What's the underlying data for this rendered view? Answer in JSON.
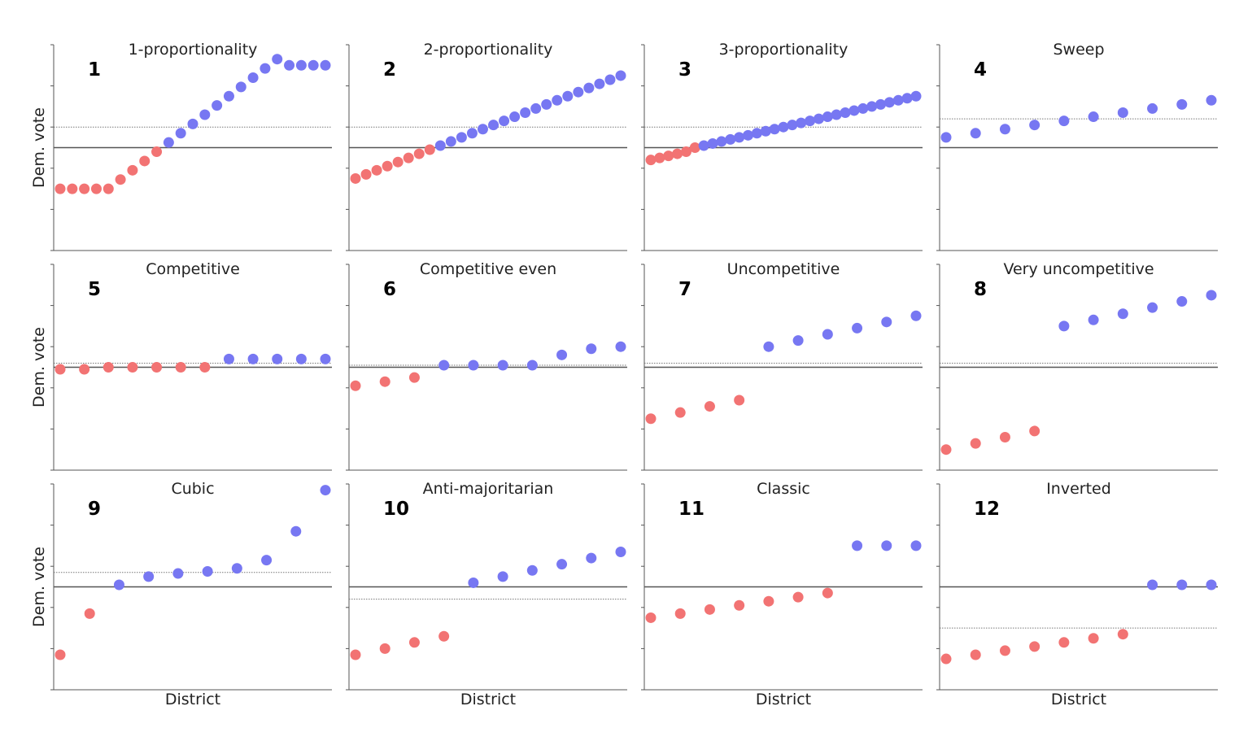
{
  "colors": {
    "republican": "#f27373",
    "democrat": "#7777f2",
    "baseline": "#555555",
    "mean_line": "#777777"
  },
  "labels": {
    "ylabel": "Dem. vote",
    "xlabel": "District"
  },
  "chart_data": [
    {
      "type": "scatter",
      "number": "1",
      "title": "1-proportionality",
      "ylim": [
        0,
        1
      ],
      "baseline": 0.5,
      "mean": 0.6,
      "grid": false,
      "y": [
        0.3,
        0.3,
        0.3,
        0.3,
        0.3,
        0.345,
        0.39,
        0.435,
        0.48,
        0.525,
        0.57,
        0.615,
        0.66,
        0.705,
        0.75,
        0.795,
        0.84,
        0.885,
        0.93,
        0.9,
        0.9,
        0.9,
        0.9
      ]
    },
    {
      "type": "scatter",
      "number": "2",
      "title": "2-proportionality",
      "ylim": [
        0,
        1
      ],
      "baseline": 0.5,
      "mean": 0.6,
      "grid": false,
      "y": [
        0.35,
        0.37,
        0.39,
        0.41,
        0.43,
        0.45,
        0.47,
        0.49,
        0.51,
        0.53,
        0.55,
        0.57,
        0.59,
        0.61,
        0.63,
        0.65,
        0.67,
        0.69,
        0.71,
        0.73,
        0.75,
        0.77,
        0.79,
        0.81,
        0.83,
        0.85
      ]
    },
    {
      "type": "scatter",
      "number": "3",
      "title": "3-proportionality",
      "ylim": [
        0,
        1
      ],
      "baseline": 0.5,
      "mean": 0.6,
      "grid": false,
      "y": [
        0.44,
        0.45,
        0.46,
        0.47,
        0.48,
        0.5,
        0.51,
        0.52,
        0.53,
        0.54,
        0.55,
        0.56,
        0.57,
        0.58,
        0.59,
        0.6,
        0.61,
        0.62,
        0.63,
        0.64,
        0.65,
        0.66,
        0.67,
        0.68,
        0.69,
        0.7,
        0.71,
        0.72,
        0.73,
        0.74,
        0.75
      ]
    },
    {
      "type": "scatter",
      "number": "4",
      "title": "Sweep",
      "ylim": [
        0,
        1
      ],
      "baseline": 0.5,
      "mean": 0.64,
      "grid": false,
      "y": [
        0.55,
        0.57,
        0.59,
        0.61,
        0.63,
        0.65,
        0.67,
        0.69,
        0.71,
        0.73
      ]
    },
    {
      "type": "scatter",
      "number": "5",
      "title": "Competitive",
      "ylim": [
        0,
        1
      ],
      "baseline": 0.5,
      "mean": 0.52,
      "grid": false,
      "y": [
        0.49,
        0.49,
        0.5,
        0.5,
        0.5,
        0.5,
        0.5,
        0.54,
        0.54,
        0.54,
        0.54,
        0.54
      ]
    },
    {
      "type": "scatter",
      "number": "6",
      "title": "Competitive even",
      "ylim": [
        0,
        1
      ],
      "baseline": 0.5,
      "mean": 0.51,
      "grid": false,
      "y": [
        0.41,
        0.43,
        0.45,
        0.51,
        0.51,
        0.51,
        0.51,
        0.56,
        0.59,
        0.6
      ]
    },
    {
      "type": "scatter",
      "number": "7",
      "title": "Uncompetitive",
      "ylim": [
        0,
        1
      ],
      "baseline": 0.5,
      "mean": 0.52,
      "grid": false,
      "y": [
        0.25,
        0.28,
        0.31,
        0.34,
        0.6,
        0.63,
        0.66,
        0.69,
        0.72,
        0.75
      ]
    },
    {
      "type": "scatter",
      "number": "8",
      "title": "Very uncompetitive",
      "ylim": [
        0,
        1
      ],
      "baseline": 0.5,
      "mean": 0.52,
      "grid": false,
      "y": [
        0.1,
        0.13,
        0.16,
        0.19,
        0.7,
        0.73,
        0.76,
        0.79,
        0.82,
        0.85
      ]
    },
    {
      "type": "scatter",
      "number": "9",
      "title": "Cubic",
      "ylim": [
        0,
        1
      ],
      "baseline": 0.5,
      "mean": 0.57,
      "grid": false,
      "y": [
        0.17,
        0.37,
        0.51,
        0.55,
        0.565,
        0.575,
        0.59,
        0.63,
        0.77,
        0.97
      ]
    },
    {
      "type": "scatter",
      "number": "10",
      "title": "Anti-majoritarian",
      "ylim": [
        0,
        1
      ],
      "baseline": 0.5,
      "mean": 0.44,
      "grid": false,
      "y": [
        0.17,
        0.2,
        0.23,
        0.26,
        0.52,
        0.55,
        0.58,
        0.61,
        0.64,
        0.67
      ]
    },
    {
      "type": "scatter",
      "number": "11",
      "title": "Classic",
      "ylim": [
        0,
        1
      ],
      "baseline": 0.5,
      "mean": null,
      "grid": false,
      "y": [
        0.35,
        0.37,
        0.39,
        0.41,
        0.43,
        0.45,
        0.47,
        0.7,
        0.7,
        0.7
      ]
    },
    {
      "type": "scatter",
      "number": "12",
      "title": "Inverted",
      "ylim": [
        0,
        1
      ],
      "baseline": 0.5,
      "mean": 0.3,
      "grid": false,
      "y": [
        0.15,
        0.17,
        0.19,
        0.21,
        0.23,
        0.25,
        0.27,
        0.51,
        0.51,
        0.51
      ]
    }
  ]
}
